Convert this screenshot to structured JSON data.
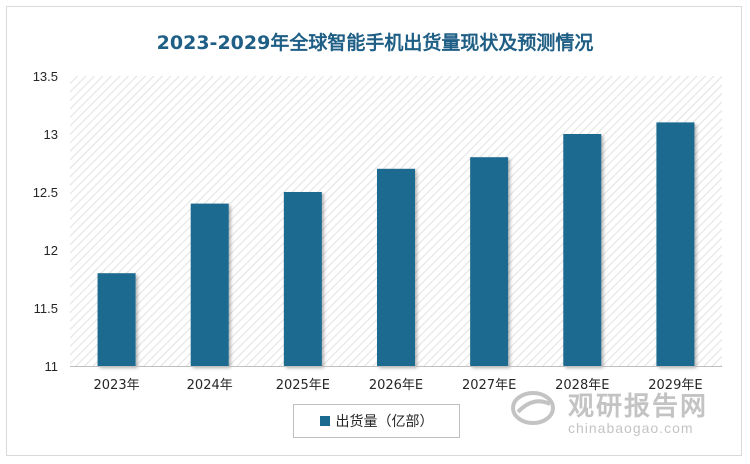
{
  "chart_data": {
    "type": "bar",
    "title": "2023-2029年全球智能手机出货量现状及预测情况",
    "categories": [
      "2023年",
      "2024年",
      "2025年E",
      "2026年E",
      "2027年E",
      "2028年E",
      "2029年E"
    ],
    "series": [
      {
        "name": "出货量（亿部）",
        "values": [
          11.8,
          12.4,
          12.5,
          12.7,
          12.8,
          13.0,
          13.1
        ],
        "color": "#1b6a8f"
      }
    ],
    "ylim": [
      11,
      13.5
    ],
    "yticks": [
      "11",
      "11.5",
      "12",
      "12.5",
      "13",
      "13.5"
    ],
    "grid": false,
    "legend_position": "bottom"
  },
  "watermark": {
    "cn": "观研报告网",
    "en": "chinabaogao.com"
  }
}
